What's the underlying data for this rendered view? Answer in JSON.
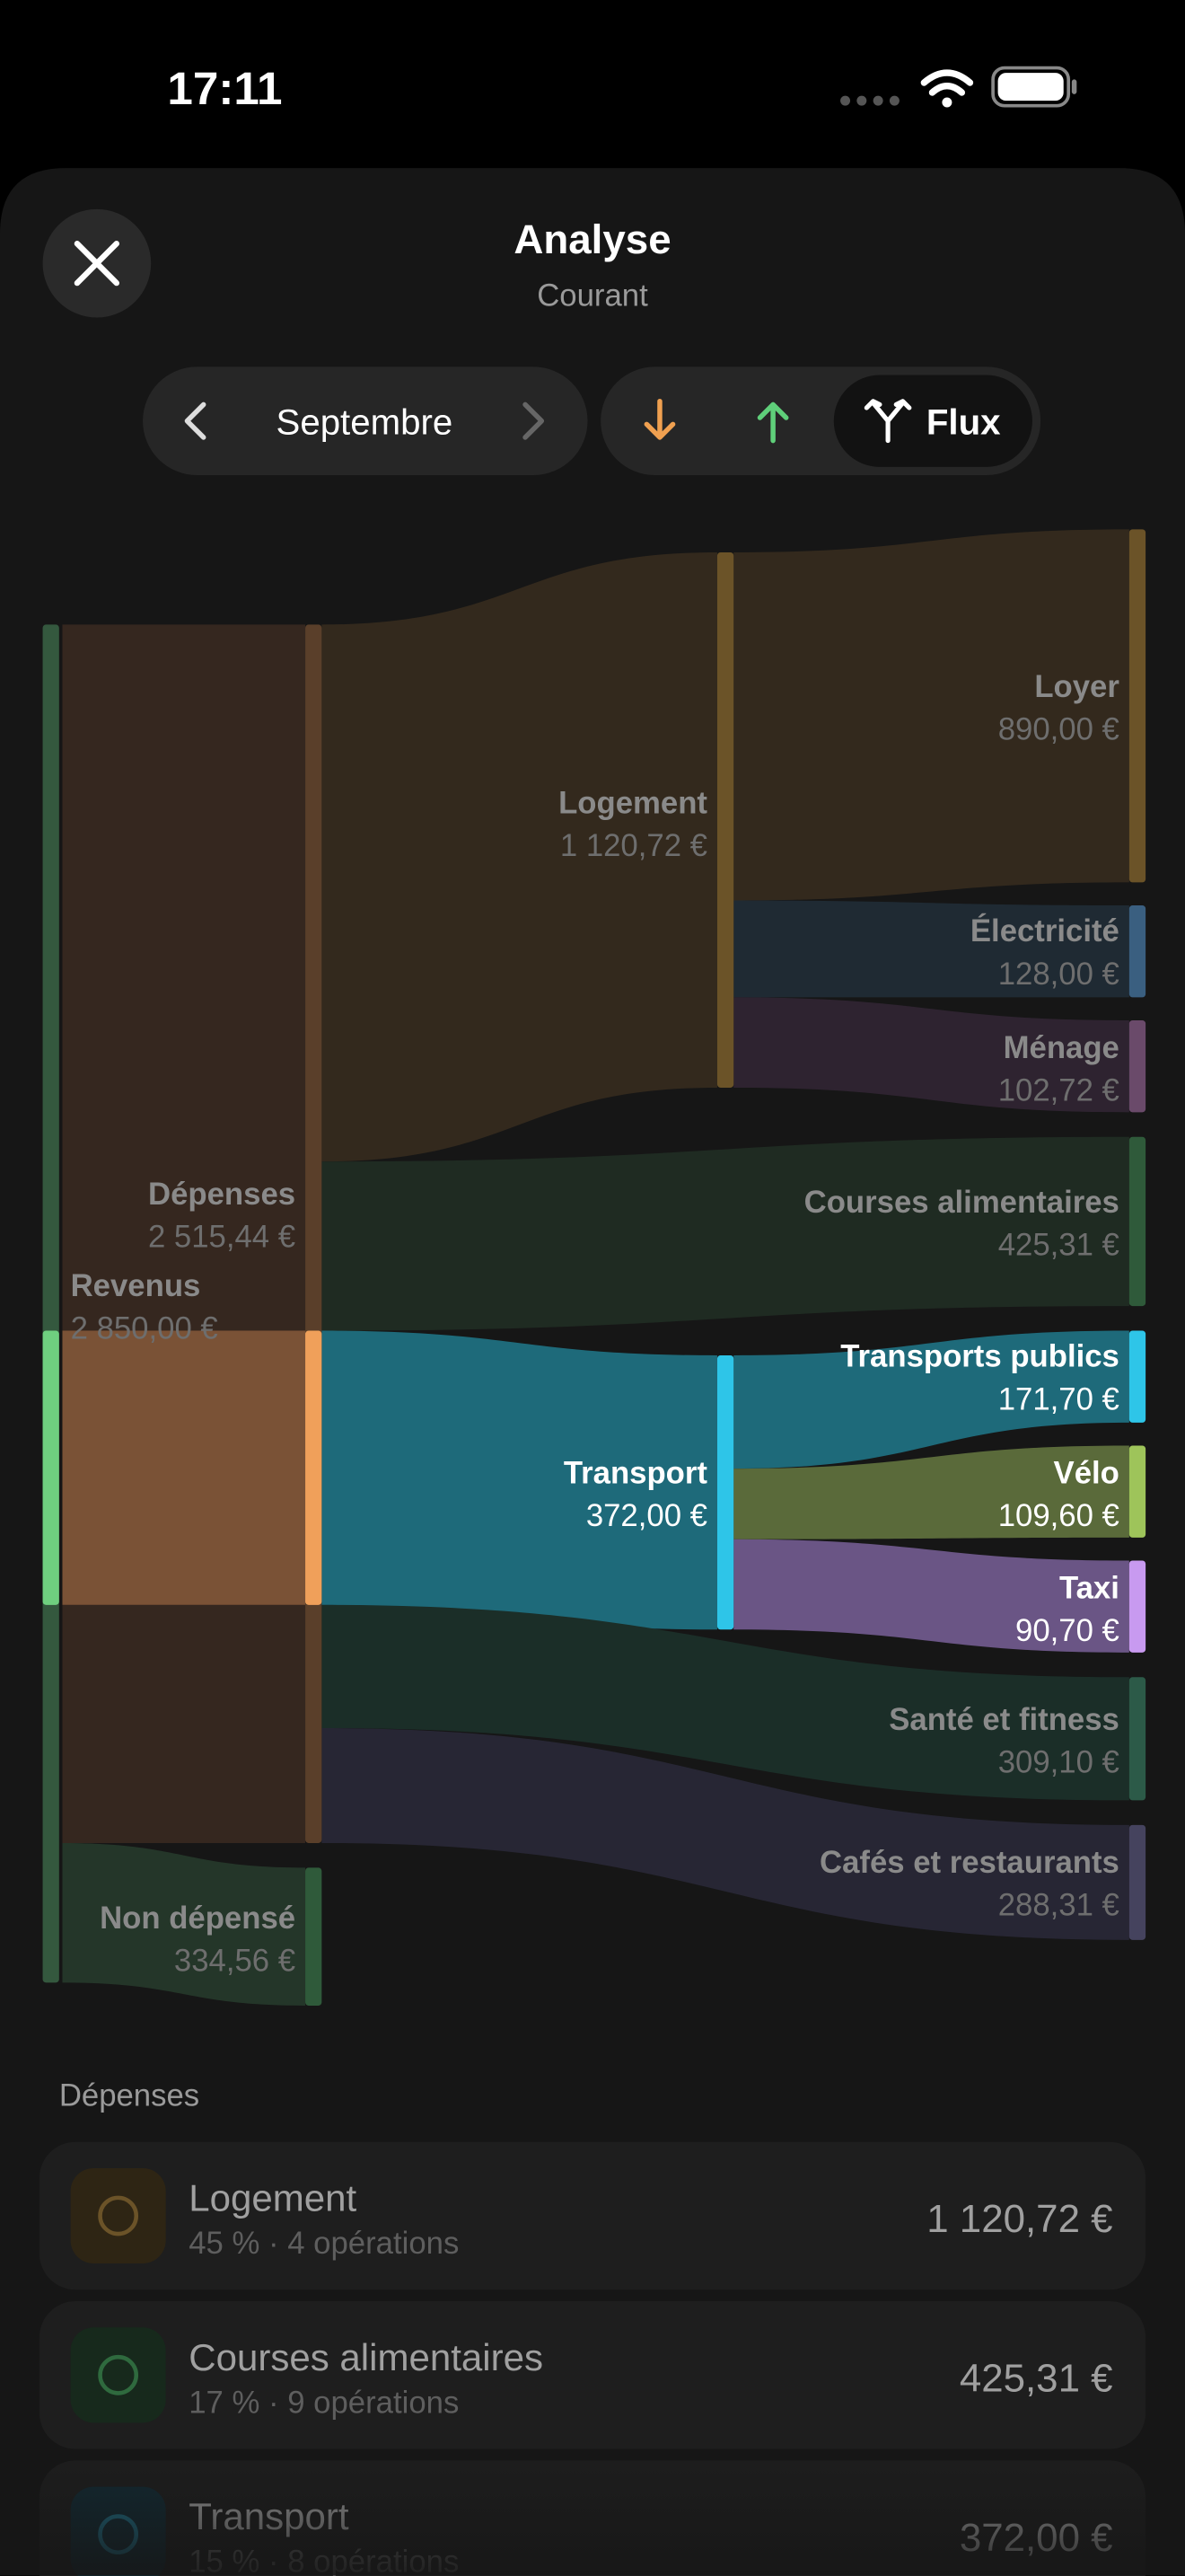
{
  "status_bar": {
    "time": "17:11"
  },
  "header": {
    "title": "Analyse",
    "subtitle": "Courant"
  },
  "period": {
    "month": "Septembre"
  },
  "view_toggle": {
    "selected": "Flux"
  },
  "sankey": {
    "nodes": [
      {
        "name": "Revenus",
        "amount": "2 850,00 €"
      },
      {
        "name": "Dépenses",
        "amount": "2 515,44 €"
      },
      {
        "name": "Non dépensé",
        "amount": "334,56 €"
      },
      {
        "name": "Logement",
        "amount": "1 120,72 €"
      },
      {
        "name": "Courses alimentaires",
        "amount": "425,31 €"
      },
      {
        "name": "Transport",
        "amount": "372,00 €"
      },
      {
        "name": "Santé et fitness",
        "amount": "309,10 €"
      },
      {
        "name": "Cafés et restaurants",
        "amount": "288,31 €"
      },
      {
        "name": "Loyer",
        "amount": "890,00 €"
      },
      {
        "name": "Électricité",
        "amount": "128,00 €"
      },
      {
        "name": "Ménage",
        "amount": "102,72 €"
      },
      {
        "name": "Transports publics",
        "amount": "171,70 €"
      },
      {
        "name": "Vélo",
        "amount": "109,60 €"
      },
      {
        "name": "Taxi",
        "amount": "90,70 €"
      }
    ]
  },
  "list": {
    "heading": "Dépenses",
    "items": [
      {
        "name": "Logement",
        "detail": "45 % · 4 opérations",
        "amount": "1 120,72 €"
      },
      {
        "name": "Courses alimentaires",
        "detail": "17 % · 9 opérations",
        "amount": "425,31 €"
      },
      {
        "name": "Transport",
        "detail": "15 % · 8 opérations",
        "amount": "372,00 €"
      }
    ]
  }
}
